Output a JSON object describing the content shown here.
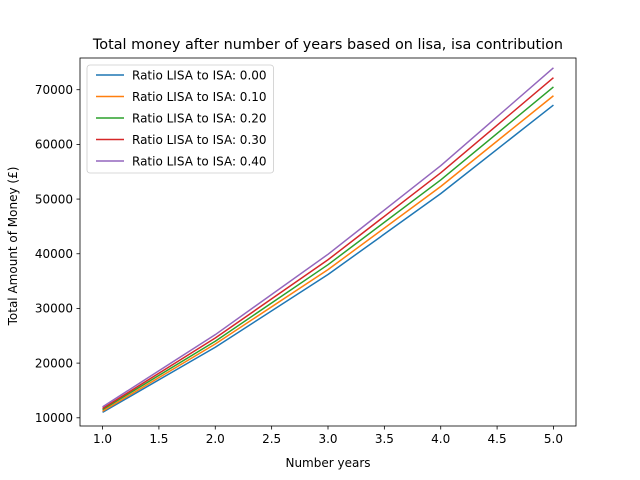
{
  "chart_data": {
    "type": "line",
    "title": "Total money after number of years based on lisa, isa contribution",
    "xlabel": "Number years",
    "ylabel": "Total Amount of Money (£)",
    "x": [
      1,
      2,
      3,
      4,
      5
    ],
    "xlim": [
      0.8,
      5.2
    ],
    "ylim": [
      8500,
      75800
    ],
    "xticks": [
      "1.0",
      "1.5",
      "2.0",
      "2.5",
      "3.0",
      "3.5",
      "4.0",
      "4.5",
      "5.0"
    ],
    "yticks": [
      "10000",
      "20000",
      "30000",
      "40000",
      "50000",
      "60000",
      "70000"
    ],
    "grid": false,
    "legend_position": "upper-left",
    "series": [
      {
        "name": "Ratio LISA to ISA: 0.00",
        "color": "#1f77b4",
        "values": [
          11000,
          22900,
          36200,
          51000,
          67200
        ]
      },
      {
        "name": "Ratio LISA to ISA: 0.10",
        "color": "#ff7f0e",
        "values": [
          11200,
          23500,
          37100,
          52300,
          68900
        ]
      },
      {
        "name": "Ratio LISA to ISA: 0.20",
        "color": "#2ca02c",
        "values": [
          11500,
          24000,
          38000,
          53500,
          70500
        ]
      },
      {
        "name": "Ratio LISA to ISA: 0.30",
        "color": "#d62728",
        "values": [
          11700,
          24600,
          38900,
          54800,
          72200
        ]
      },
      {
        "name": "Ratio LISA to ISA: 0.40",
        "color": "#9467bd",
        "values": [
          12000,
          25200,
          39900,
          56100,
          74000
        ]
      }
    ]
  }
}
